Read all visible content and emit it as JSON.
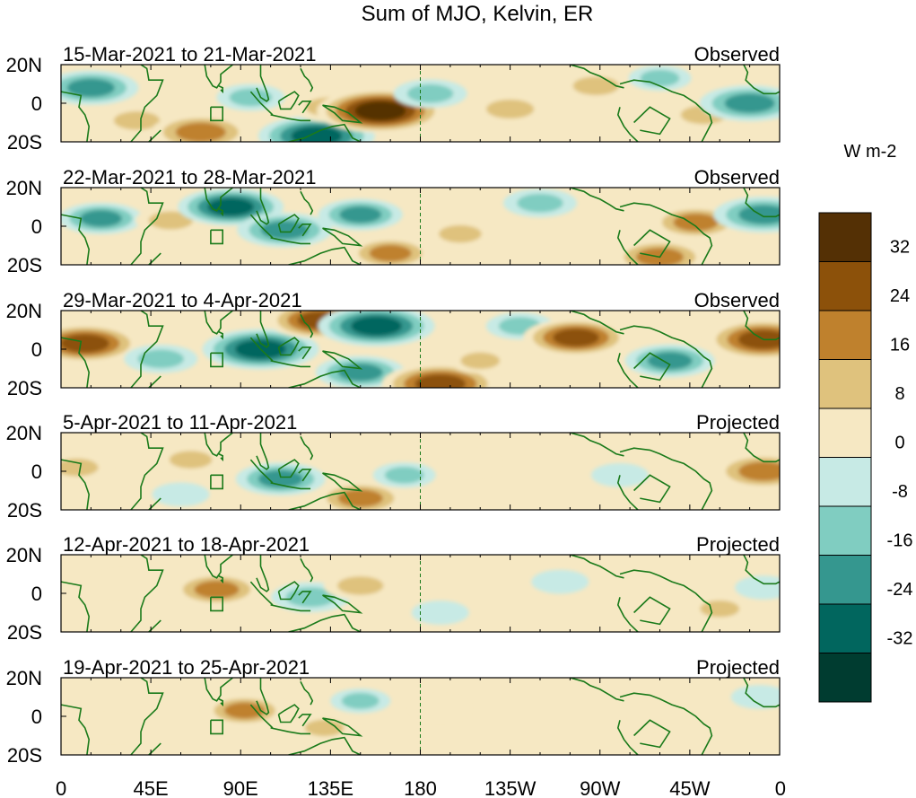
{
  "chart_data": {
    "type": "heatmap",
    "title": "Sum of MJO, Kelvin, ER",
    "colorbar": {
      "label": "W m-2",
      "tick_labels": [
        "32",
        "24",
        "16",
        "8",
        "0",
        "-8",
        "-16",
        "-24",
        "-32"
      ],
      "bins": [
        {
          "range": [
            32,
            40
          ],
          "color": "#543005"
        },
        {
          "range": [
            24,
            32
          ],
          "color": "#8c510a"
        },
        {
          "range": [
            16,
            24
          ],
          "color": "#bf812d"
        },
        {
          "range": [
            8,
            16
          ],
          "color": "#dfc27d"
        },
        {
          "range": [
            0,
            8
          ],
          "color": "#f6e8c3"
        },
        {
          "range": [
            -8,
            0
          ],
          "color": "#c7eae5"
        },
        {
          "range": [
            -16,
            -8
          ],
          "color": "#80cdc1"
        },
        {
          "range": [
            -24,
            -16
          ],
          "color": "#35978f"
        },
        {
          "range": [
            -32,
            -24
          ],
          "color": "#01665e"
        },
        {
          "range": [
            -40,
            -32
          ],
          "color": "#003c30"
        }
      ]
    },
    "x_ticks": [
      "0",
      "45E",
      "90E",
      "135E",
      "180",
      "135W",
      "90W",
      "45W",
      "0"
    ],
    "y_ticks": [
      "20N",
      "0",
      "20S"
    ],
    "xlim_deg": [
      0,
      360
    ],
    "ylim_deg": [
      -20,
      20
    ],
    "panels": [
      {
        "period": "15-Mar-2021 to 21-Mar-2021",
        "status": "Observed",
        "blobs": [
          {
            "lon": 15,
            "lat": 8,
            "v": -22
          },
          {
            "lon": 38,
            "lat": -9,
            "v": 14
          },
          {
            "lon": 70,
            "lat": -15,
            "v": 24
          },
          {
            "lon": 95,
            "lat": 3,
            "v": -12
          },
          {
            "lon": 128,
            "lat": -17,
            "v": -30
          },
          {
            "lon": 135,
            "lat": -2,
            "v": 16
          },
          {
            "lon": 160,
            "lat": -4,
            "v": 34
          },
          {
            "lon": 185,
            "lat": 5,
            "v": -14
          },
          {
            "lon": 225,
            "lat": -3,
            "v": 15
          },
          {
            "lon": 268,
            "lat": 9,
            "v": 14
          },
          {
            "lon": 322,
            "lat": -6,
            "v": 14
          },
          {
            "lon": 345,
            "lat": 0,
            "v": -24
          },
          {
            "lon": 300,
            "lat": 13,
            "v": -10
          }
        ]
      },
      {
        "period": "22-Mar-2021 to 28-Mar-2021",
        "status": "Observed",
        "blobs": [
          {
            "lon": 20,
            "lat": 4,
            "v": -18
          },
          {
            "lon": 55,
            "lat": 3,
            "v": 13
          },
          {
            "lon": 85,
            "lat": 10,
            "v": -26
          },
          {
            "lon": 112,
            "lat": -2,
            "v": -22
          },
          {
            "lon": 150,
            "lat": 6,
            "v": -18
          },
          {
            "lon": 165,
            "lat": -14,
            "v": 18
          },
          {
            "lon": 200,
            "lat": -4,
            "v": 12
          },
          {
            "lon": 240,
            "lat": 12,
            "v": -14
          },
          {
            "lon": 300,
            "lat": -16,
            "v": 22
          },
          {
            "lon": 318,
            "lat": 2,
            "v": 20
          },
          {
            "lon": 352,
            "lat": 6,
            "v": -24
          }
        ]
      },
      {
        "period": "29-Mar-2021 to 4-Apr-2021",
        "status": "Observed",
        "blobs": [
          {
            "lon": 12,
            "lat": 3,
            "v": 28
          },
          {
            "lon": 50,
            "lat": -5,
            "v": -14
          },
          {
            "lon": 100,
            "lat": 0,
            "v": -30
          },
          {
            "lon": 130,
            "lat": 15,
            "v": 26
          },
          {
            "lon": 158,
            "lat": 12,
            "v": -30
          },
          {
            "lon": 150,
            "lat": -12,
            "v": -20
          },
          {
            "lon": 190,
            "lat": -18,
            "v": 30
          },
          {
            "lon": 230,
            "lat": 12,
            "v": -12
          },
          {
            "lon": 258,
            "lat": 6,
            "v": 26
          },
          {
            "lon": 305,
            "lat": -6,
            "v": -20
          },
          {
            "lon": 352,
            "lat": 5,
            "v": 30
          },
          {
            "lon": 210,
            "lat": -6,
            "v": 10
          }
        ]
      },
      {
        "period": "5-Apr-2021 to 11-Apr-2021",
        "status": "Projected",
        "blobs": [
          {
            "lon": 8,
            "lat": 2,
            "v": 12
          },
          {
            "lon": 65,
            "lat": 6,
            "v": 12
          },
          {
            "lon": 110,
            "lat": -4,
            "v": -20
          },
          {
            "lon": 150,
            "lat": -14,
            "v": 20
          },
          {
            "lon": 172,
            "lat": -2,
            "v": -10
          },
          {
            "lon": 205,
            "lat": 4,
            "v": 8
          },
          {
            "lon": 280,
            "lat": -2,
            "v": -8
          },
          {
            "lon": 352,
            "lat": 0,
            "v": 24
          },
          {
            "lon": 60,
            "lat": -12,
            "v": -8
          }
        ]
      },
      {
        "period": "12-Apr-2021 to 18-Apr-2021",
        "status": "Projected",
        "blobs": [
          {
            "lon": 30,
            "lat": 5,
            "v": 8
          },
          {
            "lon": 78,
            "lat": 2,
            "v": 20
          },
          {
            "lon": 125,
            "lat": -2,
            "v": -16
          },
          {
            "lon": 150,
            "lat": 4,
            "v": 14
          },
          {
            "lon": 190,
            "lat": -10,
            "v": -8
          },
          {
            "lon": 250,
            "lat": 6,
            "v": -8
          },
          {
            "lon": 330,
            "lat": -8,
            "v": 10
          },
          {
            "lon": 352,
            "lat": 3,
            "v": -8
          }
        ]
      },
      {
        "period": "19-Apr-2021 to 25-Apr-2021",
        "status": "Projected",
        "blobs": [
          {
            "lon": 25,
            "lat": -6,
            "v": 8
          },
          {
            "lon": 92,
            "lat": 3,
            "v": 17
          },
          {
            "lon": 132,
            "lat": -6,
            "v": 10
          },
          {
            "lon": 150,
            "lat": 8,
            "v": -9
          },
          {
            "lon": 190,
            "lat": 4,
            "v": 8
          },
          {
            "lon": 300,
            "lat": 0,
            "v": 8
          },
          {
            "lon": 350,
            "lat": 10,
            "v": -8
          }
        ]
      }
    ]
  }
}
